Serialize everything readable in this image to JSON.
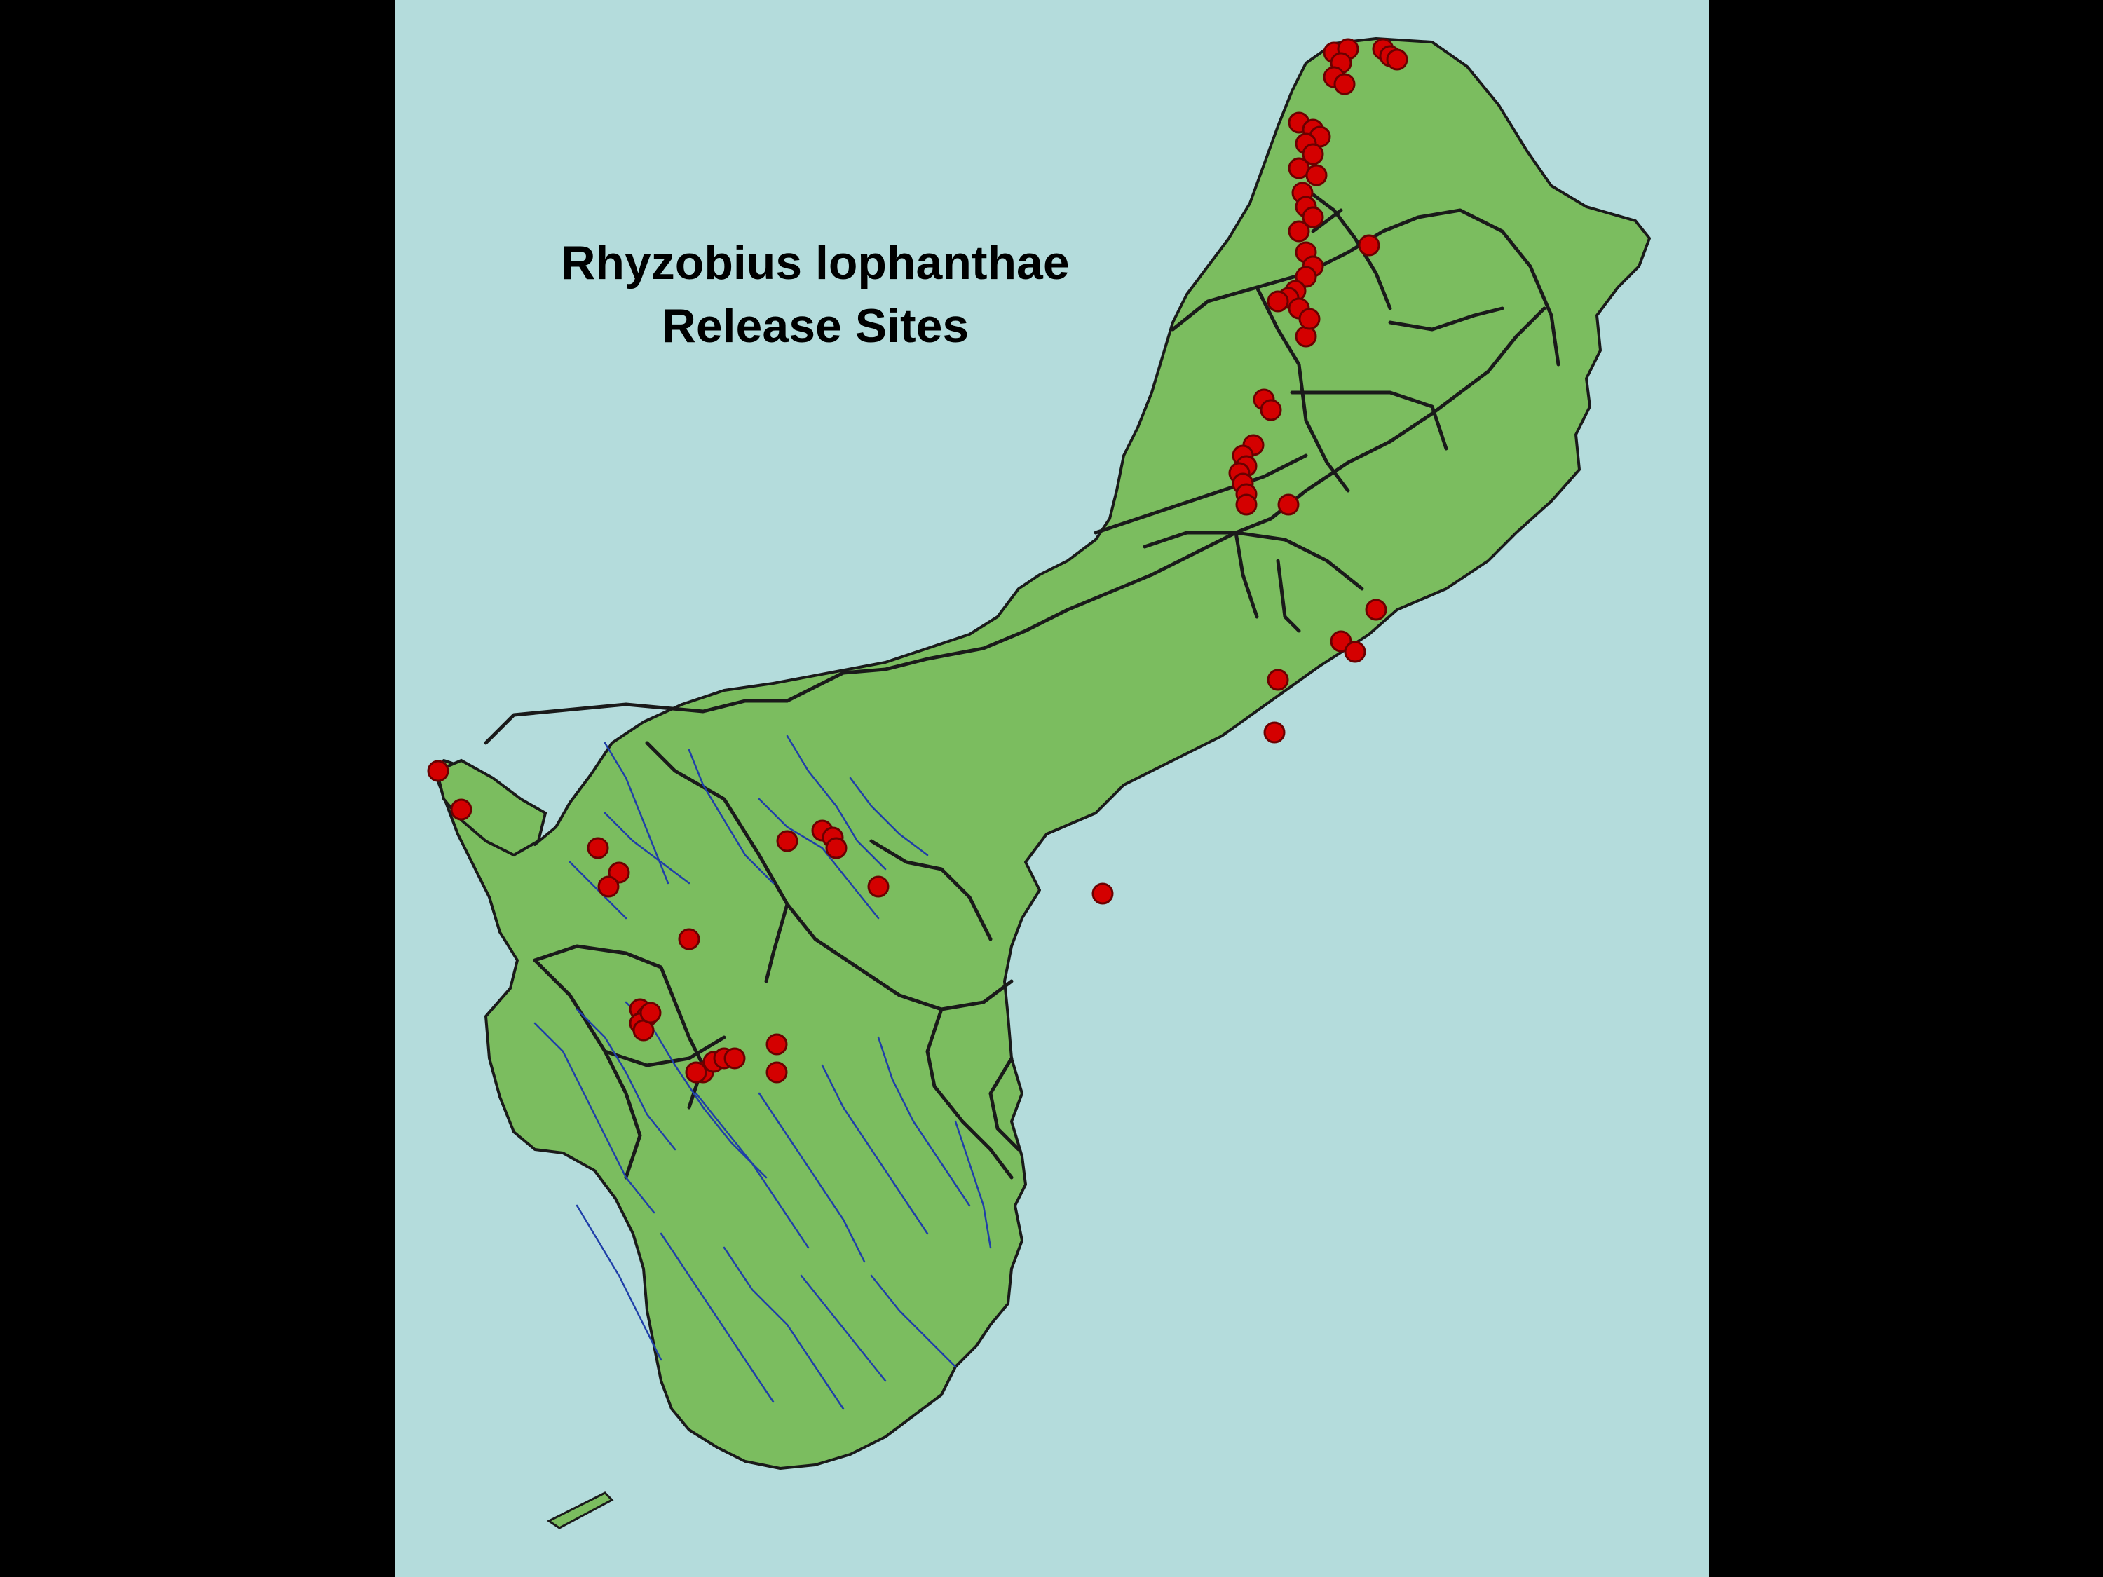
{
  "title": {
    "line1": "Rhyzobius lophanthae",
    "line2": "Release Sites"
  },
  "colors": {
    "background": "#000000",
    "ocean": "#b4dcdc",
    "land": "#7bbd5f",
    "roads": "#1a1a1a",
    "rivers": "#1f3fa8",
    "release_site": "#d40000",
    "release_site_outline": "#6a0000"
  },
  "legend_items": [
    {
      "label": "",
      "icon": "release-site-marker"
    }
  ]
}
